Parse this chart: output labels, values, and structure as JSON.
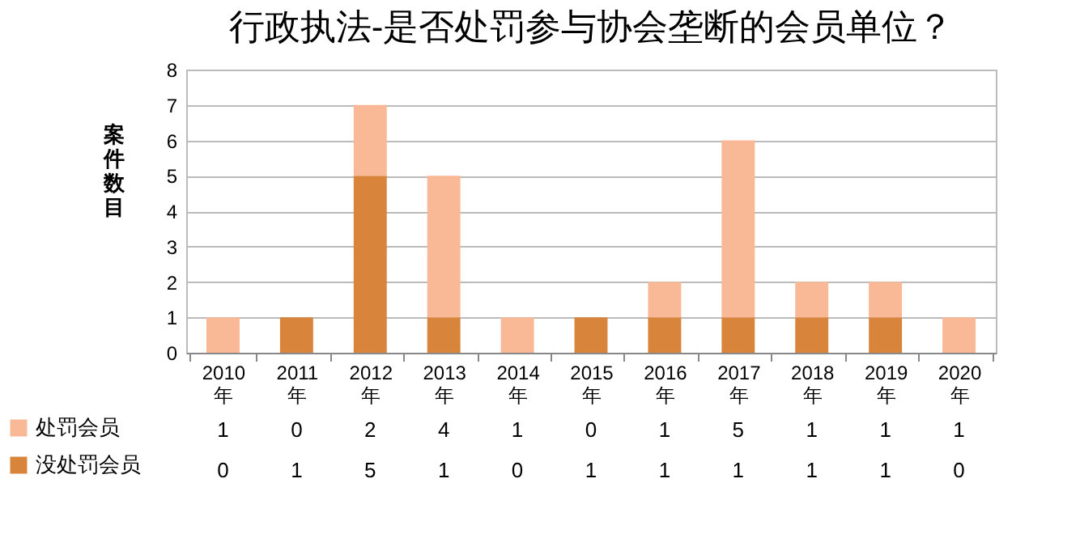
{
  "chart_data": {
    "type": "bar",
    "title": "行政执法-是否处罚参与协会垄断的会员单位？",
    "ylabel": "案件数目",
    "categories": [
      "2010年",
      "2011年",
      "2012年",
      "2013年",
      "2014年",
      "2015年",
      "2016年",
      "2017年",
      "2018年",
      "2019年",
      "2020年"
    ],
    "series": [
      {
        "name": "没处罚会员",
        "color": "#d9843b",
        "values": [
          0,
          1,
          5,
          1,
          0,
          1,
          1,
          1,
          1,
          1,
          0
        ]
      },
      {
        "name": "处罚会员",
        "color": "#f9b896",
        "values": [
          1,
          0,
          2,
          4,
          1,
          0,
          1,
          5,
          1,
          1,
          1
        ]
      }
    ],
    "stacked": true,
    "ylim": [
      0,
      8
    ],
    "yticks": [
      0,
      1,
      2,
      3,
      4,
      5,
      6,
      7,
      8
    ],
    "grid": "y",
    "legend": "bottom left",
    "data_labels": true
  }
}
